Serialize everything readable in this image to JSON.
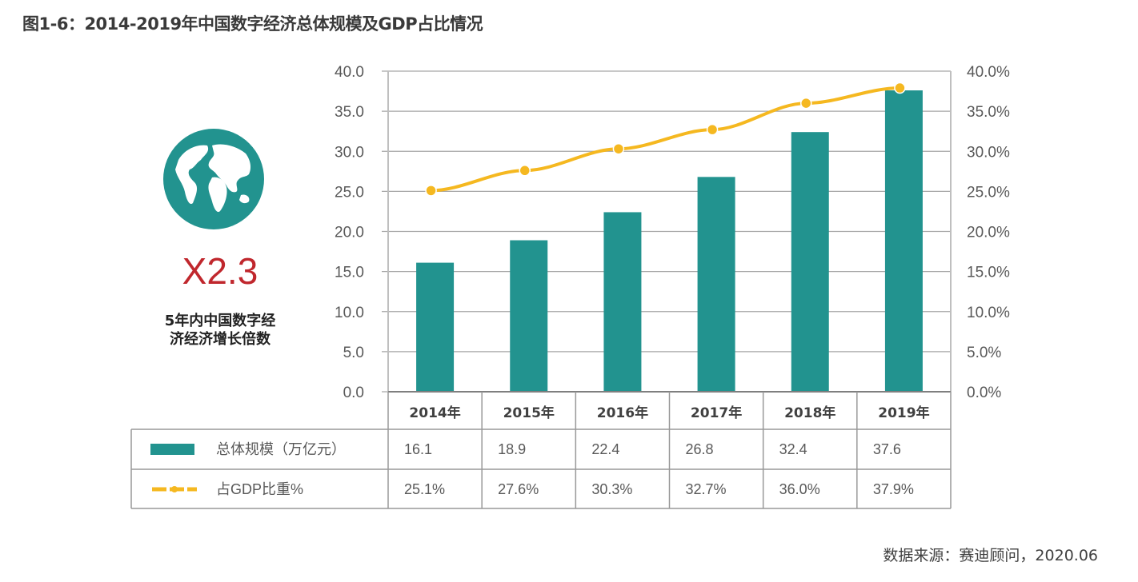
{
  "title": "图1-6：2014-2019年中国数字经济总体规模及GDP占比情况",
  "side_panel": {
    "icon": "globe-icon",
    "multiplier": "X2.3",
    "description_line1": "5年内中国数字经",
    "description_line2": "济经济增长倍数"
  },
  "colors": {
    "bar": "#22938f",
    "line": "#f5b820",
    "multiplier": "#c0272d",
    "grid": "#a6a6a6"
  },
  "chart_data": {
    "type": "bar",
    "title": "2014-2019年中国数字经济总体规模及GDP占比情况",
    "categories": [
      "2014年",
      "2015年",
      "2016年",
      "2017年",
      "2018年",
      "2019年"
    ],
    "series": [
      {
        "name": "总体规模（万亿元）",
        "type": "bar",
        "axis": "left",
        "values": [
          16.1,
          18.9,
          22.4,
          26.8,
          32.4,
          37.6
        ],
        "labels": [
          "16.1",
          "18.9",
          "22.4",
          "26.8",
          "32.4",
          "37.6"
        ]
      },
      {
        "name": "占GDP比重%",
        "type": "line",
        "axis": "right",
        "values": [
          25.1,
          27.6,
          30.3,
          32.7,
          36.0,
          37.9
        ],
        "labels": [
          "25.1%",
          "27.6%",
          "30.3%",
          "32.7%",
          "36.0%",
          "37.9%"
        ]
      }
    ],
    "left_axis": {
      "ylim": [
        0,
        40
      ],
      "ticks": [
        "0.0",
        "5.0",
        "10.0",
        "15.0",
        "20.0",
        "25.0",
        "30.0",
        "35.0",
        "40.0"
      ]
    },
    "right_axis": {
      "ylim": [
        0,
        40
      ],
      "ticks": [
        "0.0%",
        "5.0%",
        "10.0%",
        "15.0%",
        "20.0%",
        "25.0%",
        "30.0%",
        "35.0%",
        "40.0%"
      ]
    },
    "grid": true,
    "legend": "data-table-bottom",
    "xlabel": "",
    "ylabel": ""
  },
  "source": "数据来源：赛迪顾问，2020.06"
}
